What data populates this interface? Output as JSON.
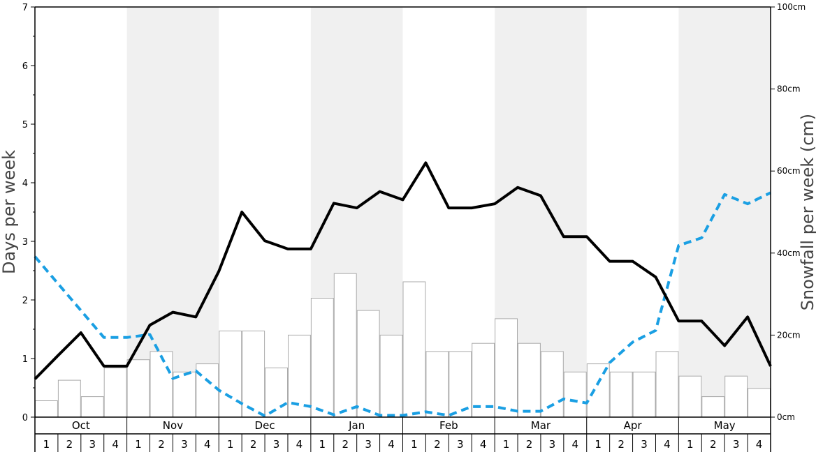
{
  "chart_data": {
    "type": "bar+line",
    "left_axis": {
      "label": "Days per week",
      "ylim": [
        0,
        7
      ],
      "ticks": [
        "0",
        "1",
        "2",
        "3",
        "4",
        "5",
        "6",
        "7"
      ]
    },
    "right_axis": {
      "label": "Snowfall per week (cm)",
      "ylim": [
        0,
        100
      ],
      "ticks": [
        "0cm",
        "20cm",
        "40cm",
        "60cm",
        "80cm",
        "100cm"
      ]
    },
    "months": [
      "Oct",
      "Nov",
      "Dec",
      "Jan",
      "Feb",
      "Mar",
      "Apr",
      "May"
    ],
    "weeks": [
      "1",
      "2",
      "3",
      "4"
    ],
    "colors": {
      "bars_fill": "#ffffff",
      "bars_stroke": "#aaaaaa",
      "solid_line": "#000000",
      "dashed_line": "#1a9fe3",
      "band_shade": "#f0f0f0"
    },
    "snowfall_cm": [
      4,
      9,
      5,
      12,
      14,
      16,
      11,
      13,
      21,
      21,
      12,
      20,
      29,
      35,
      26,
      20,
      33,
      16,
      16,
      18,
      24,
      18,
      16,
      11,
      13,
      11,
      11,
      16,
      10,
      5,
      10,
      7
    ],
    "solid_line_days": [
      0.65,
      1.05,
      1.44,
      0.87,
      0.87,
      1.57,
      1.79,
      1.71,
      2.49,
      3.5,
      3.01,
      2.87,
      2.87,
      3.65,
      3.57,
      3.85,
      3.71,
      4.34,
      3.57,
      3.57,
      3.64,
      3.92,
      3.78,
      3.08,
      3.08,
      2.66,
      2.66,
      2.39,
      1.64,
      1.64,
      1.22,
      1.71,
      0.87
    ],
    "dashed_line_days": [
      2.74,
      2.28,
      1.82,
      1.36,
      1.36,
      1.41,
      0.66,
      0.79,
      0.46,
      0.23,
      0.02,
      0.25,
      0.18,
      0.04,
      0.18,
      0.03,
      0.03,
      0.09,
      0.03,
      0.18,
      0.18,
      0.1,
      0.1,
      0.31,
      0.24,
      0.93,
      1.28,
      1.48,
      2.93,
      3.06,
      3.8,
      3.64,
      3.83
    ]
  }
}
